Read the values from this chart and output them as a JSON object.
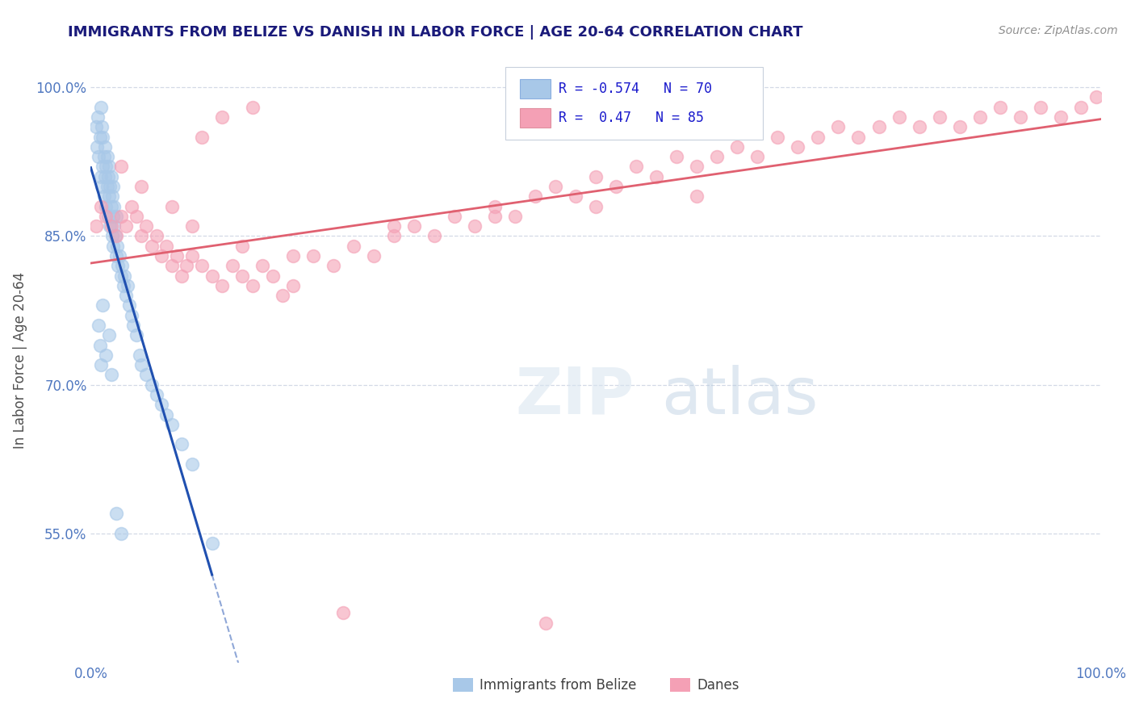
{
  "title": "IMMIGRANTS FROM BELIZE VS DANISH IN LABOR FORCE | AGE 20-64 CORRELATION CHART",
  "source": "Source: ZipAtlas.com",
  "ylabel": "In Labor Force | Age 20-64",
  "xmin": 0.0,
  "xmax": 1.0,
  "ymin": 0.42,
  "ymax": 1.03,
  "ytick_vals": [
    0.55,
    0.7,
    0.85,
    1.0
  ],
  "ytick_labels": [
    "55.0%",
    "70.0%",
    "85.0%",
    "100.0%"
  ],
  "xtick_vals": [
    0.0,
    1.0
  ],
  "xtick_labels": [
    "0.0%",
    "100.0%"
  ],
  "r_belize": -0.574,
  "n_belize": 70,
  "r_danes": 0.47,
  "n_danes": 85,
  "color_belize": "#a8c8e8",
  "color_danes": "#f4a0b5",
  "line_color_belize": "#2050b0",
  "line_color_danes": "#e06070",
  "legend_belize": "Immigrants from Belize",
  "legend_danes": "Danes",
  "background_color": "#ffffff",
  "belize_x": [
    0.005,
    0.006,
    0.007,
    0.008,
    0.009,
    0.01,
    0.01,
    0.011,
    0.011,
    0.012,
    0.012,
    0.013,
    0.013,
    0.014,
    0.014,
    0.015,
    0.015,
    0.016,
    0.016,
    0.017,
    0.017,
    0.018,
    0.018,
    0.019,
    0.019,
    0.02,
    0.02,
    0.021,
    0.021,
    0.022,
    0.022,
    0.022,
    0.023,
    0.023,
    0.024,
    0.025,
    0.025,
    0.026,
    0.027,
    0.028,
    0.03,
    0.031,
    0.032,
    0.033,
    0.035,
    0.036,
    0.038,
    0.04,
    0.042,
    0.045,
    0.048,
    0.05,
    0.055,
    0.06,
    0.065,
    0.07,
    0.075,
    0.08,
    0.09,
    0.1,
    0.008,
    0.009,
    0.01,
    0.012,
    0.015,
    0.018,
    0.02,
    0.025,
    0.03,
    0.12
  ],
  "belize_y": [
    0.96,
    0.94,
    0.97,
    0.93,
    0.95,
    0.91,
    0.98,
    0.9,
    0.96,
    0.92,
    0.95,
    0.89,
    0.93,
    0.91,
    0.94,
    0.88,
    0.92,
    0.9,
    0.93,
    0.87,
    0.91,
    0.89,
    0.92,
    0.86,
    0.9,
    0.88,
    0.91,
    0.85,
    0.89,
    0.87,
    0.9,
    0.84,
    0.88,
    0.86,
    0.85,
    0.87,
    0.83,
    0.84,
    0.82,
    0.83,
    0.81,
    0.82,
    0.8,
    0.81,
    0.79,
    0.8,
    0.78,
    0.77,
    0.76,
    0.75,
    0.73,
    0.72,
    0.71,
    0.7,
    0.69,
    0.68,
    0.67,
    0.66,
    0.64,
    0.62,
    0.76,
    0.74,
    0.72,
    0.78,
    0.73,
    0.75,
    0.71,
    0.57,
    0.55,
    0.54
  ],
  "danes_x": [
    0.005,
    0.01,
    0.015,
    0.02,
    0.025,
    0.03,
    0.035,
    0.04,
    0.045,
    0.05,
    0.055,
    0.06,
    0.065,
    0.07,
    0.075,
    0.08,
    0.085,
    0.09,
    0.095,
    0.1,
    0.11,
    0.12,
    0.13,
    0.14,
    0.15,
    0.16,
    0.17,
    0.18,
    0.19,
    0.2,
    0.22,
    0.24,
    0.26,
    0.28,
    0.3,
    0.32,
    0.34,
    0.36,
    0.38,
    0.4,
    0.42,
    0.44,
    0.46,
    0.48,
    0.5,
    0.52,
    0.54,
    0.56,
    0.58,
    0.6,
    0.62,
    0.64,
    0.66,
    0.68,
    0.7,
    0.72,
    0.74,
    0.76,
    0.78,
    0.8,
    0.82,
    0.84,
    0.86,
    0.88,
    0.9,
    0.92,
    0.94,
    0.96,
    0.98,
    0.995,
    0.03,
    0.05,
    0.08,
    0.1,
    0.15,
    0.2,
    0.3,
    0.4,
    0.5,
    0.6,
    0.11,
    0.13,
    0.16,
    0.25,
    0.45
  ],
  "danes_y": [
    0.86,
    0.88,
    0.87,
    0.86,
    0.85,
    0.87,
    0.86,
    0.88,
    0.87,
    0.85,
    0.86,
    0.84,
    0.85,
    0.83,
    0.84,
    0.82,
    0.83,
    0.81,
    0.82,
    0.83,
    0.82,
    0.81,
    0.8,
    0.82,
    0.81,
    0.8,
    0.82,
    0.81,
    0.79,
    0.8,
    0.83,
    0.82,
    0.84,
    0.83,
    0.85,
    0.86,
    0.85,
    0.87,
    0.86,
    0.88,
    0.87,
    0.89,
    0.9,
    0.89,
    0.91,
    0.9,
    0.92,
    0.91,
    0.93,
    0.92,
    0.93,
    0.94,
    0.93,
    0.95,
    0.94,
    0.95,
    0.96,
    0.95,
    0.96,
    0.97,
    0.96,
    0.97,
    0.96,
    0.97,
    0.98,
    0.97,
    0.98,
    0.97,
    0.98,
    0.99,
    0.92,
    0.9,
    0.88,
    0.86,
    0.84,
    0.83,
    0.86,
    0.87,
    0.88,
    0.89,
    0.95,
    0.97,
    0.98,
    0.47,
    0.46
  ]
}
